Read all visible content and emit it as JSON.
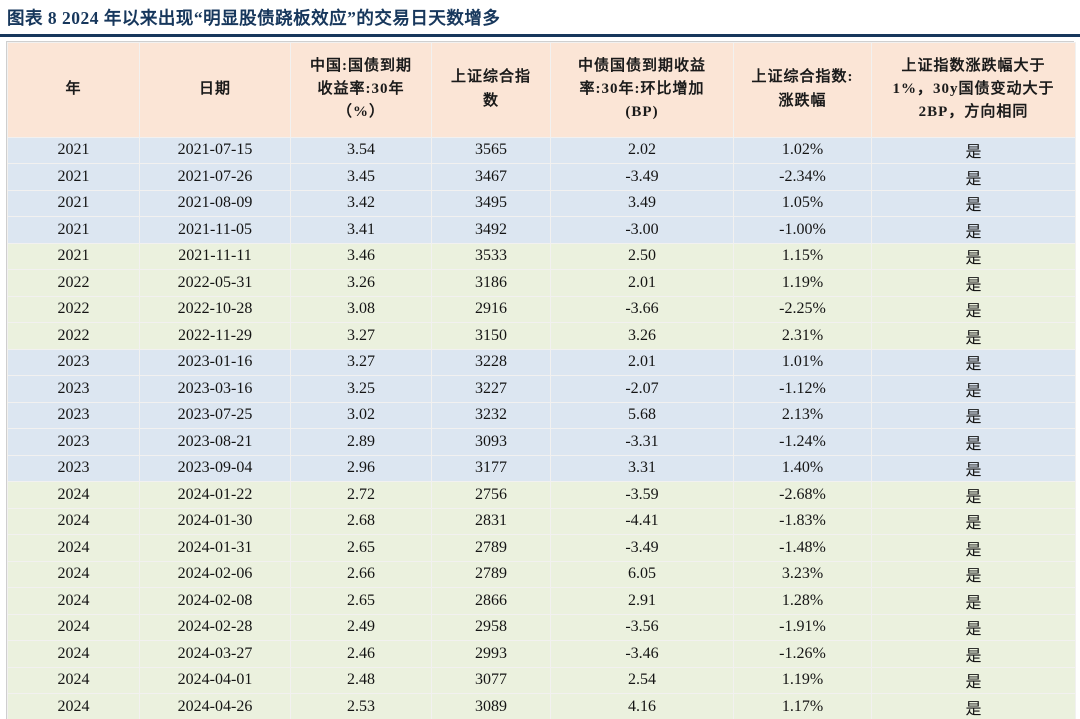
{
  "title": "图表 8  2024 年以来出现“明显股债跷板效应”的交易日天数增多",
  "colors": {
    "title_navy": "#17375c",
    "header_bg_peach": "#fbe5d6",
    "row_blue": "#dce6f1",
    "row_green": "#ebf1de",
    "grid_line": "#f2f1f0"
  },
  "table": {
    "columns": [
      "年",
      "日期",
      "中国:国债到期\n收益率:30年\n（%）",
      "上证综合指\n数",
      "中债国债到期收益\n率:30年:环比增加\n(BP)",
      "上证综合指数:\n涨跌幅",
      "上证指数涨跌幅大于\n1%，30y国债变动大于\n2BP，方向相同"
    ],
    "rows": [
      {
        "year": "2021",
        "date": "2021-07-15",
        "yield": "3.54",
        "index": "3565",
        "bp": "2.02",
        "chg": "1.02%",
        "flag": "是",
        "tone": "blue"
      },
      {
        "year": "2021",
        "date": "2021-07-26",
        "yield": "3.45",
        "index": "3467",
        "bp": "-3.49",
        "chg": "-2.34%",
        "flag": "是",
        "tone": "blue"
      },
      {
        "year": "2021",
        "date": "2021-08-09",
        "yield": "3.42",
        "index": "3495",
        "bp": "3.49",
        "chg": "1.05%",
        "flag": "是",
        "tone": "blue"
      },
      {
        "year": "2021",
        "date": "2021-11-05",
        "yield": "3.41",
        "index": "3492",
        "bp": "-3.00",
        "chg": "-1.00%",
        "flag": "是",
        "tone": "blue"
      },
      {
        "year": "2021",
        "date": "2021-11-11",
        "yield": "3.46",
        "index": "3533",
        "bp": "2.50",
        "chg": "1.15%",
        "flag": "是",
        "tone": "green"
      },
      {
        "year": "2022",
        "date": "2022-05-31",
        "yield": "3.26",
        "index": "3186",
        "bp": "2.01",
        "chg": "1.19%",
        "flag": "是",
        "tone": "green"
      },
      {
        "year": "2022",
        "date": "2022-10-28",
        "yield": "3.08",
        "index": "2916",
        "bp": "-3.66",
        "chg": "-2.25%",
        "flag": "是",
        "tone": "green"
      },
      {
        "year": "2022",
        "date": "2022-11-29",
        "yield": "3.27",
        "index": "3150",
        "bp": "3.26",
        "chg": "2.31%",
        "flag": "是",
        "tone": "green"
      },
      {
        "year": "2023",
        "date": "2023-01-16",
        "yield": "3.27",
        "index": "3228",
        "bp": "2.01",
        "chg": "1.01%",
        "flag": "是",
        "tone": "blue"
      },
      {
        "year": "2023",
        "date": "2023-03-16",
        "yield": "3.25",
        "index": "3227",
        "bp": "-2.07",
        "chg": "-1.12%",
        "flag": "是",
        "tone": "blue"
      },
      {
        "year": "2023",
        "date": "2023-07-25",
        "yield": "3.02",
        "index": "3232",
        "bp": "5.68",
        "chg": "2.13%",
        "flag": "是",
        "tone": "blue"
      },
      {
        "year": "2023",
        "date": "2023-08-21",
        "yield": "2.89",
        "index": "3093",
        "bp": "-3.31",
        "chg": "-1.24%",
        "flag": "是",
        "tone": "blue"
      },
      {
        "year": "2023",
        "date": "2023-09-04",
        "yield": "2.96",
        "index": "3177",
        "bp": "3.31",
        "chg": "1.40%",
        "flag": "是",
        "tone": "blue"
      },
      {
        "year": "2024",
        "date": "2024-01-22",
        "yield": "2.72",
        "index": "2756",
        "bp": "-3.59",
        "chg": "-2.68%",
        "flag": "是",
        "tone": "green"
      },
      {
        "year": "2024",
        "date": "2024-01-30",
        "yield": "2.68",
        "index": "2831",
        "bp": "-4.41",
        "chg": "-1.83%",
        "flag": "是",
        "tone": "green"
      },
      {
        "year": "2024",
        "date": "2024-01-31",
        "yield": "2.65",
        "index": "2789",
        "bp": "-3.49",
        "chg": "-1.48%",
        "flag": "是",
        "tone": "green"
      },
      {
        "year": "2024",
        "date": "2024-02-06",
        "yield": "2.66",
        "index": "2789",
        "bp": "6.05",
        "chg": "3.23%",
        "flag": "是",
        "tone": "green"
      },
      {
        "year": "2024",
        "date": "2024-02-08",
        "yield": "2.65",
        "index": "2866",
        "bp": "2.91",
        "chg": "1.28%",
        "flag": "是",
        "tone": "green"
      },
      {
        "year": "2024",
        "date": "2024-02-28",
        "yield": "2.49",
        "index": "2958",
        "bp": "-3.56",
        "chg": "-1.91%",
        "flag": "是",
        "tone": "green"
      },
      {
        "year": "2024",
        "date": "2024-03-27",
        "yield": "2.46",
        "index": "2993",
        "bp": "-3.46",
        "chg": "-1.26%",
        "flag": "是",
        "tone": "green"
      },
      {
        "year": "2024",
        "date": "2024-04-01",
        "yield": "2.48",
        "index": "3077",
        "bp": "2.54",
        "chg": "1.19%",
        "flag": "是",
        "tone": "green"
      },
      {
        "year": "2024",
        "date": "2024-04-26",
        "yield": "2.53",
        "index": "3089",
        "bp": "4.16",
        "chg": "1.17%",
        "flag": "是",
        "tone": "green"
      }
    ]
  }
}
